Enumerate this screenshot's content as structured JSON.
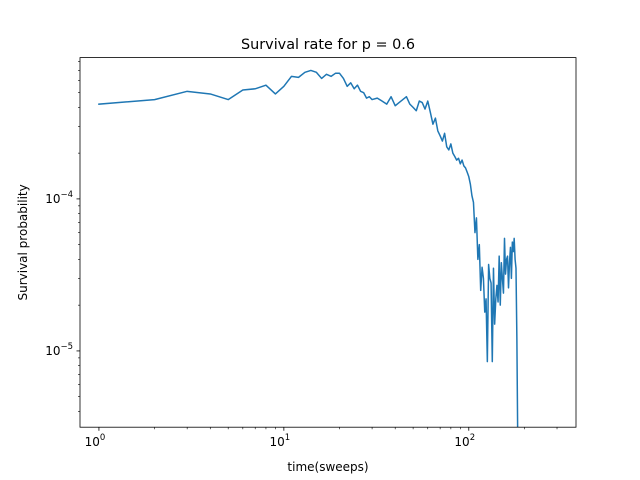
{
  "chart_data": {
    "type": "line",
    "title": "Survival rate for p = 0.6",
    "xlabel": "time(sweeps)",
    "ylabel": "Survival probability",
    "xscale": "log",
    "yscale": "log",
    "xlim": [
      0.79,
      380
    ],
    "ylim": [
      3.15e-06,
      0.00085
    ],
    "grid": false,
    "line_color": "#1f77b4",
    "x_ticks": [
      {
        "value": 1,
        "base": "10",
        "exp": "0"
      },
      {
        "value": 10,
        "base": "10",
        "exp": "1"
      },
      {
        "value": 100,
        "base": "10",
        "exp": "2"
      }
    ],
    "y_ticks": [
      {
        "value": 1e-05,
        "base": "10",
        "exp": "−5"
      },
      {
        "value": 0.0001,
        "base": "10",
        "exp": "−4"
      }
    ],
    "series": [
      {
        "x": [
          1,
          2,
          3,
          4,
          5,
          6,
          7,
          8,
          9,
          10,
          11,
          12,
          13,
          14,
          15,
          16,
          17,
          18,
          19,
          20,
          21,
          22,
          23,
          24,
          25,
          26,
          27,
          28,
          29,
          30,
          32,
          34,
          36,
          38,
          40,
          42,
          44,
          46,
          48,
          50,
          52,
          54,
          56,
          58,
          60,
          62,
          64,
          66,
          68,
          70,
          72,
          74,
          76,
          78,
          80,
          82,
          84,
          86,
          88,
          90,
          92,
          94,
          96,
          98,
          100,
          102,
          104,
          106,
          108,
          110,
          112,
          114,
          116,
          118,
          120,
          122,
          124,
          126,
          128,
          130,
          132,
          134,
          136,
          138,
          140,
          142,
          144,
          146,
          148,
          150,
          152,
          154,
          156,
          158,
          160,
          162,
          164,
          166,
          168,
          170,
          172,
          174,
          176,
          178,
          180,
          182,
          184
        ],
        "y": [
          0.00042,
          0.00045,
          0.00051,
          0.00049,
          0.00045,
          0.00052,
          0.00053,
          0.00056,
          0.00049,
          0.00055,
          0.00064,
          0.00063,
          0.00068,
          0.0007,
          0.00068,
          0.00062,
          0.00066,
          0.00064,
          0.00067,
          0.00067,
          0.00062,
          0.00055,
          0.00058,
          0.00053,
          0.00056,
          0.00051,
          0.0005,
          0.00046,
          0.00047,
          0.00045,
          0.00046,
          0.00044,
          0.00042,
          0.00047,
          0.00041,
          0.00043,
          0.00045,
          0.00047,
          0.00042,
          0.0004,
          0.00038,
          0.00044,
          0.00043,
          0.00039,
          0.00044,
          0.00037,
          0.00031,
          0.00034,
          0.00028,
          0.00026,
          0.00024,
          0.00027,
          0.00022,
          0.00021,
          0.00023,
          0.0002,
          0.00019,
          0.00018,
          0.000185,
          0.00017,
          0.00018,
          0.000165,
          0.00016,
          0.00015,
          0.00014,
          0.000125,
          0.000105,
          9.5e-05,
          6e-05,
          7.5e-05,
          4e-05,
          5e-05,
          2.5e-05,
          3.55e-05,
          3e-05,
          1.8e-05,
          2.2e-05,
          8.5e-06,
          3.7e-05,
          3e-05,
          2.8e-05,
          8.5e-06,
          3.5e-05,
          1.5e-05,
          2.2e-05,
          2.7e-05,
          2.1e-05,
          4.2e-05,
          2e-05,
          3.8e-05,
          3e-05,
          2.4e-05,
          5.5e-05,
          3.2e-05,
          4e-05,
          4.2e-05,
          2.6e-05,
          3.8e-05,
          4.8e-05,
          3e-05,
          5.2e-05,
          4.5e-05,
          5.5e-05,
          4e-05,
          3.5e-05,
          1.2e-05,
          2.5e-06
        ]
      }
    ]
  }
}
